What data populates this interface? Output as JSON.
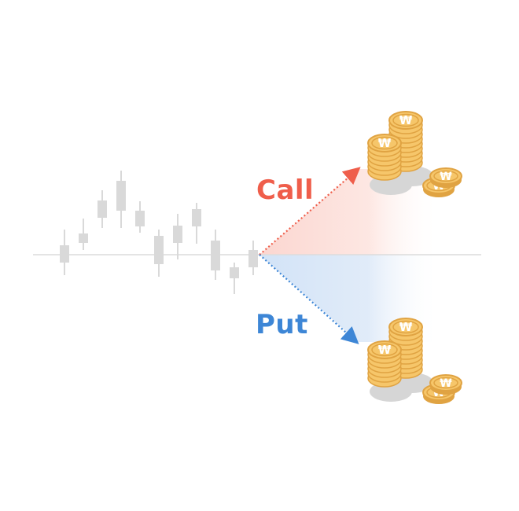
{
  "labels": {
    "call": "Call",
    "put": "Put"
  },
  "colors": {
    "call": "#ef5e4b",
    "put": "#3d86d6",
    "candle": "#d9d9d9",
    "baseline": "#dcdcdc",
    "coin_face": "#f6c66a",
    "coin_edge": "#e0a342",
    "coin_symbol": "#ffffff"
  },
  "icons": {
    "coin_symbol": "₩",
    "coin_stacks": "coin-stack-icon"
  }
}
